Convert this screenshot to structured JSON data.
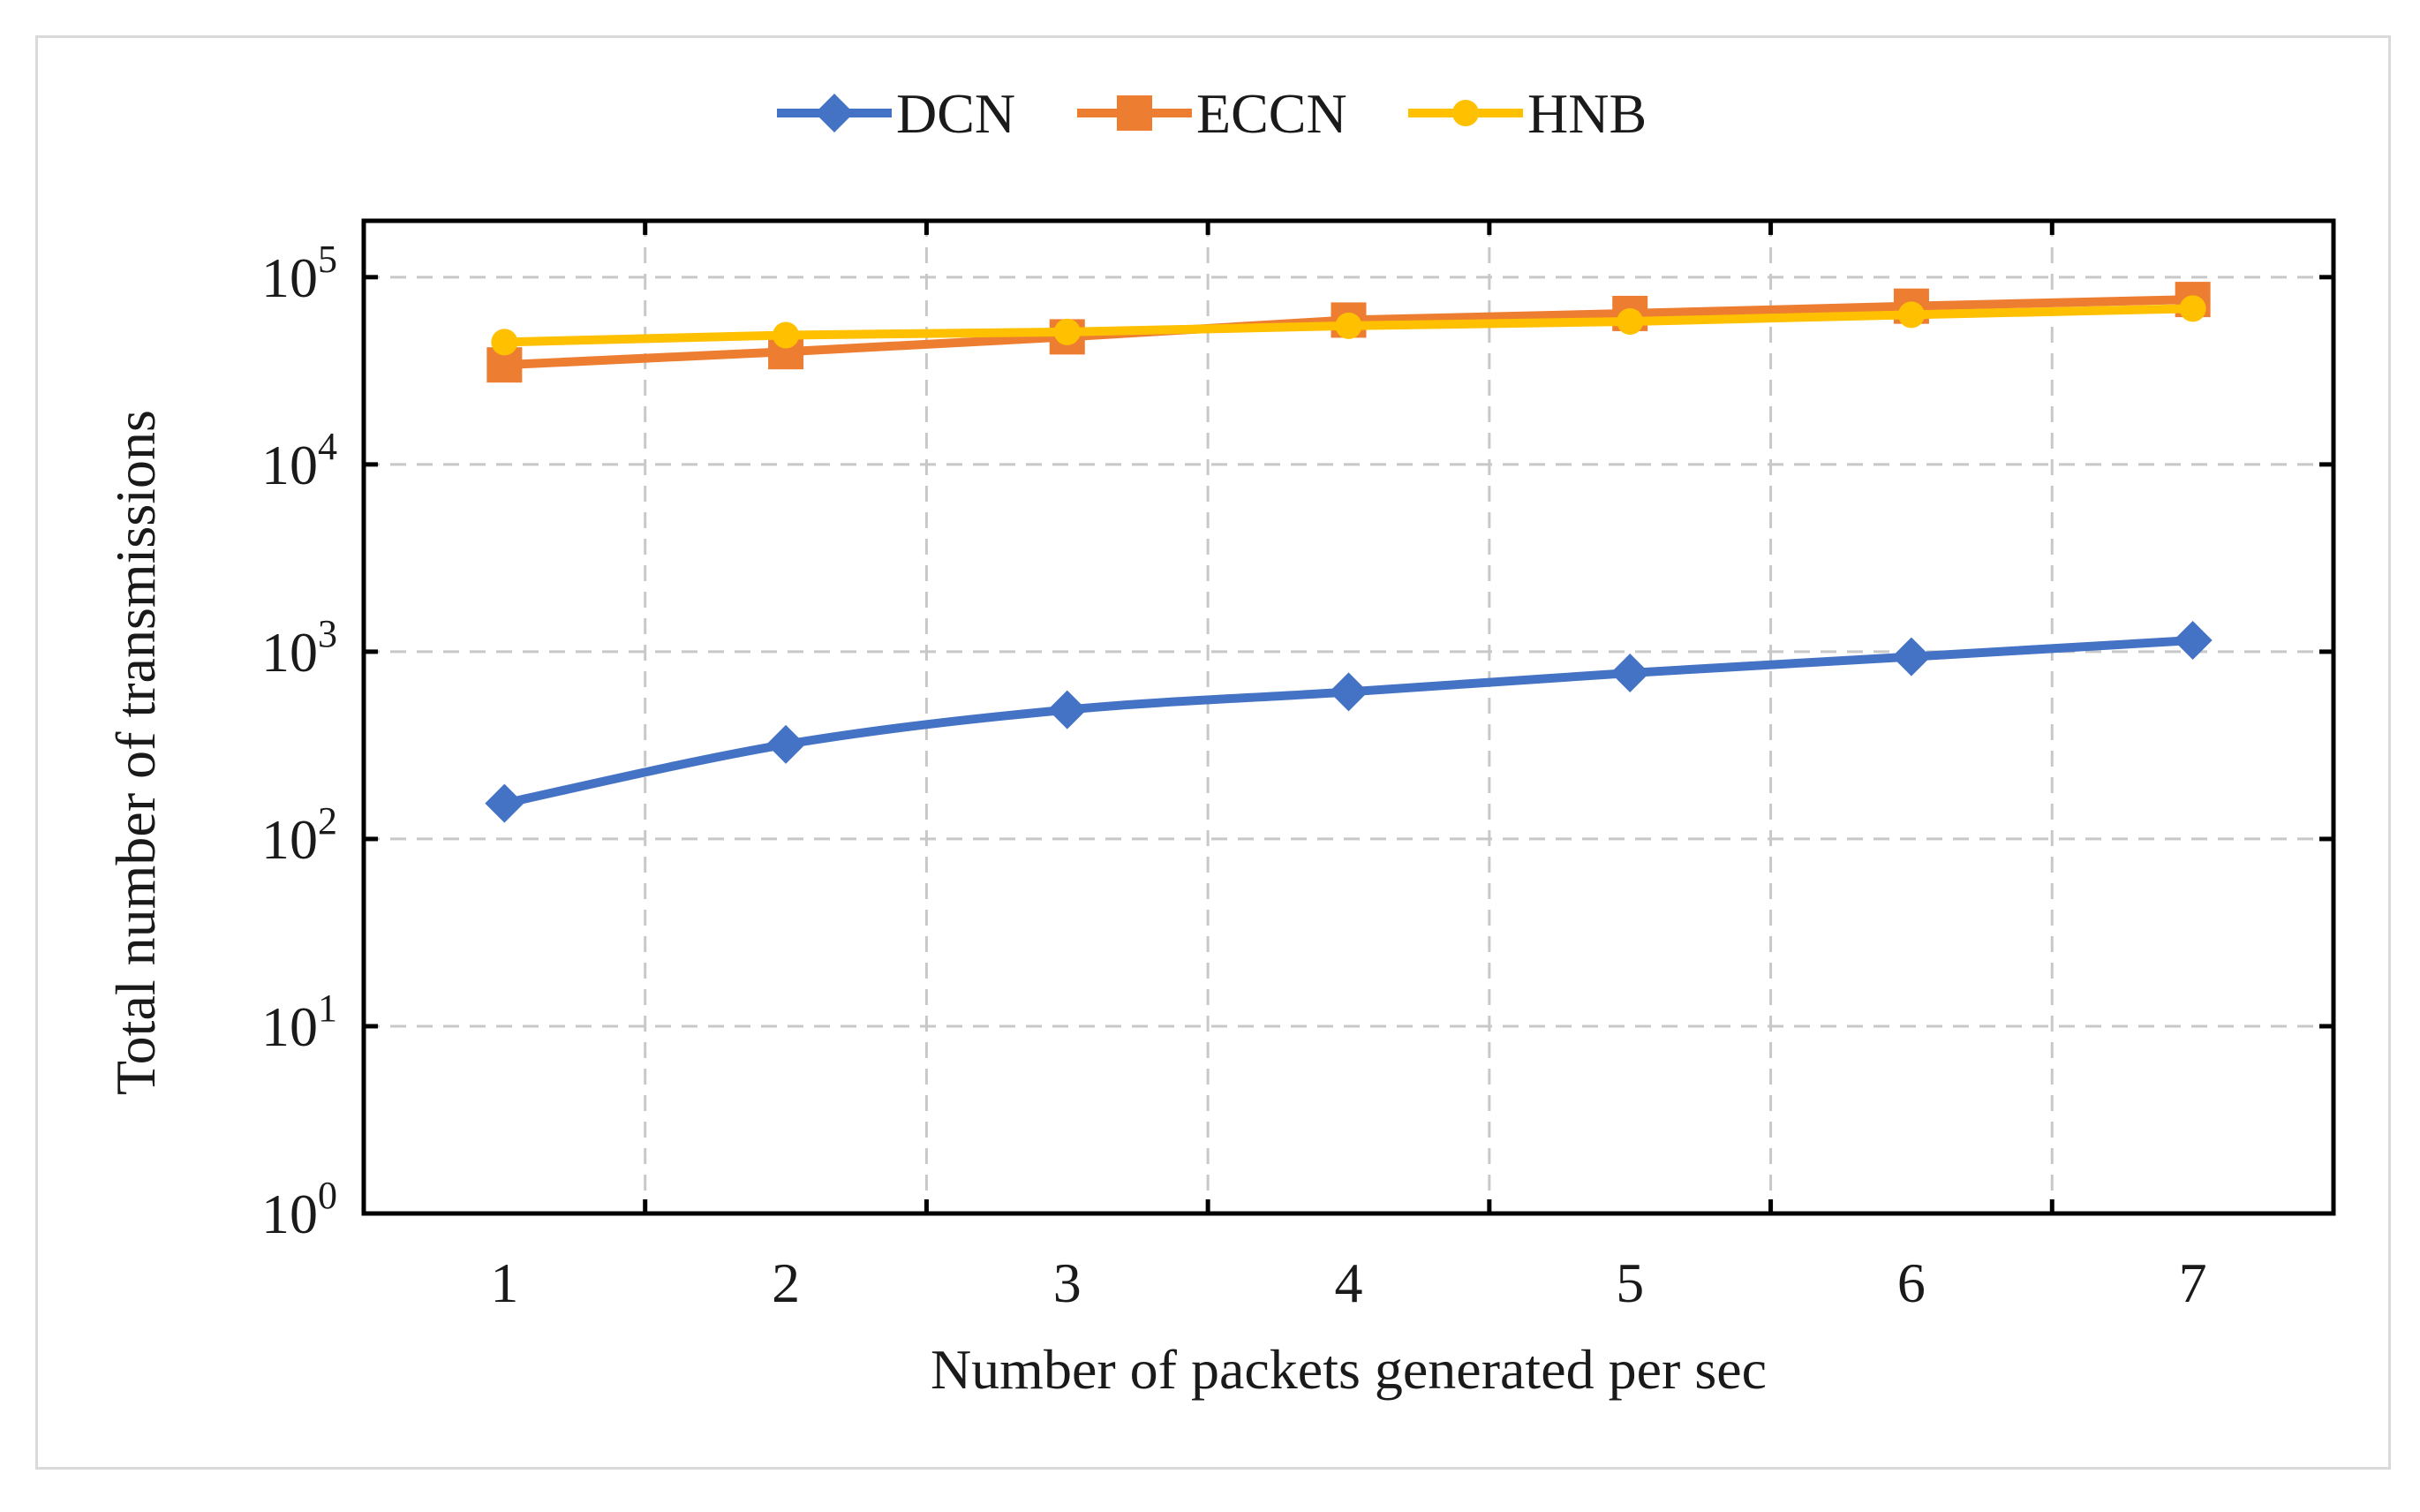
{
  "chart_data": {
    "type": "line",
    "title": "",
    "xlabel": "Number of packets generated per sec",
    "ylabel": "Total number of transmissions",
    "y_scale": "log",
    "ylim": [
      1,
      200000
    ],
    "xlim": [
      0.5,
      7.5
    ],
    "x": [
      1,
      2,
      3,
      4,
      5,
      6,
      7
    ],
    "x_tick_labels": [
      "1",
      "2",
      "3",
      "4",
      "5",
      "6",
      "7"
    ],
    "y_ticks": [
      {
        "value": 1,
        "base": "10",
        "exp": "0"
      },
      {
        "value": 10,
        "base": "10",
        "exp": "1"
      },
      {
        "value": 100,
        "base": "10",
        "exp": "2"
      },
      {
        "value": 1000,
        "base": "10",
        "exp": "3"
      },
      {
        "value": 10000,
        "base": "10",
        "exp": "4"
      },
      {
        "value": 100000,
        "base": "10",
        "exp": "5"
      }
    ],
    "grid": true,
    "legend_position": "top-center",
    "series": [
      {
        "name": "DCN",
        "marker": "diamond",
        "color": "#4472c4",
        "values": [
          155,
          320,
          490,
          610,
          770,
          940,
          1150
        ]
      },
      {
        "name": "ECCN",
        "marker": "square",
        "color": "#ed7d31",
        "values": [
          34000,
          40000,
          48000,
          59000,
          64000,
          70000,
          76000
        ]
      },
      {
        "name": "HNB",
        "marker": "circle",
        "color": "#ffc000",
        "values": [
          45000,
          49000,
          51000,
          55000,
          58000,
          63000,
          68000
        ]
      }
    ]
  }
}
